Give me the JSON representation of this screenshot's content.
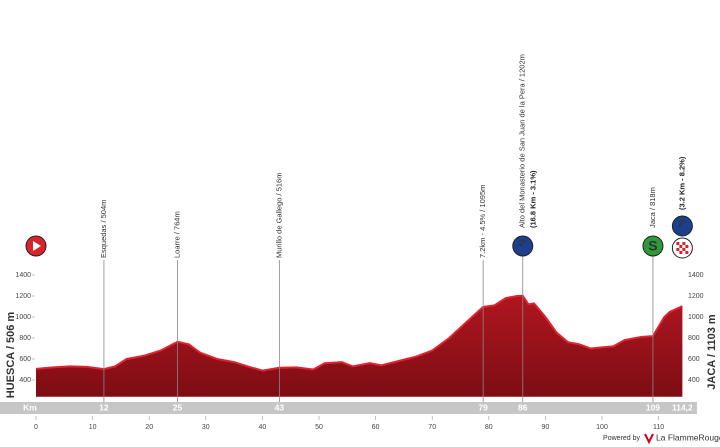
{
  "chart_data": {
    "type": "area",
    "color": "#a3141c",
    "edge_color": "#e0232e",
    "x": [
      0,
      3,
      6,
      9,
      12,
      14,
      16,
      19,
      22,
      25,
      27,
      29,
      32,
      35,
      38,
      40,
      43,
      46,
      49,
      51,
      54,
      56,
      59,
      61,
      64,
      67,
      70,
      73,
      76,
      79,
      81,
      83,
      85,
      86,
      87,
      88,
      90,
      92,
      94,
      96,
      98,
      100,
      102,
      104,
      107,
      109,
      111,
      112,
      114.2
    ],
    "values": [
      506,
      520,
      530,
      525,
      504,
      530,
      600,
      630,
      680,
      764,
      740,
      660,
      600,
      570,
      520,
      490,
      516,
      520,
      500,
      560,
      570,
      530,
      560,
      540,
      580,
      620,
      680,
      800,
      950,
      1095,
      1110,
      1180,
      1200,
      1202,
      1120,
      1130,
      1000,
      850,
      760,
      740,
      700,
      710,
      720,
      780,
      810,
      818,
      1000,
      1050,
      1103
    ],
    "xlim": [
      0,
      114.2
    ],
    "ylim": [
      240,
      1450
    ],
    "xticks": [
      0,
      10,
      20,
      30,
      40,
      50,
      60,
      70,
      80,
      90,
      100,
      110
    ],
    "yticks": [
      400,
      600,
      800,
      1000,
      1200,
      1400
    ],
    "start_label": "HUESCA / 506 m",
    "finish_label": "JACA / 1103 m",
    "km_label": "Km",
    "waypoints": [
      {
        "km": 12,
        "label": "Esquedas / 504m"
      },
      {
        "km": 25,
        "label": "Loarre / 764m"
      },
      {
        "km": 43,
        "label": "Murillo de Gallego / 516m"
      },
      {
        "km": 79,
        "label": "7.2km - 4.5% / 1095m"
      },
      {
        "km": 86,
        "label": "Alto del Monasterio de San Juan de la Pera / 1202m",
        "sublabel": "(16.8 Km - 3.1%)",
        "category": "2ª"
      },
      {
        "km": 109,
        "label": "Jaca / 818m",
        "sprint": "S"
      }
    ],
    "finish": {
      "km": {
        "value": 114.2,
        "label": "114,2"
      },
      "climb": "(3.2 Km - 8.2%)",
      "category": "2ª"
    },
    "powered_by": "Powered by",
    "brand": "La FlammeRouge"
  }
}
